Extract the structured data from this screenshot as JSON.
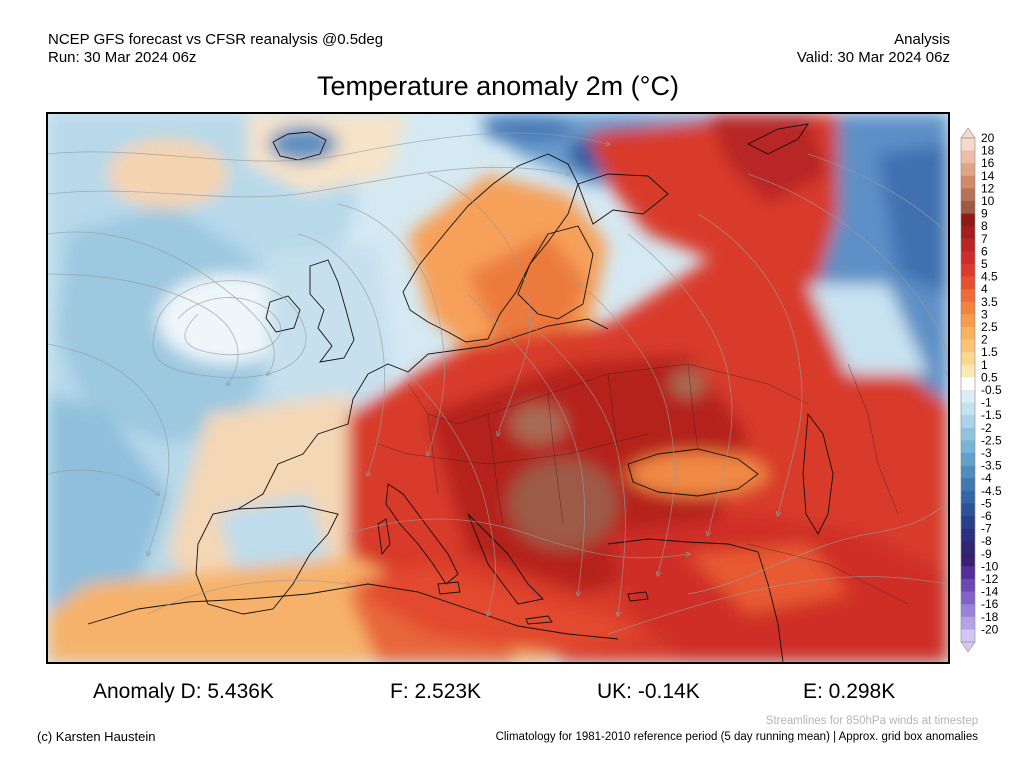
{
  "header": {
    "left_line1": "NCEP GFS forecast vs CFSR reanalysis @0.5deg",
    "left_line2": "Run: 30 Mar 2024 06z",
    "right_line1": "Analysis",
    "right_line2": "Valid: 30 Mar 2024 06z"
  },
  "title": "Temperature anomaly 2m (°C)",
  "colorbar": {
    "levels": [
      "20",
      "18",
      "16",
      "14",
      "12",
      "10",
      "9",
      "8",
      "7",
      "6",
      "5",
      "4.5",
      "4",
      "3.5",
      "3",
      "2.5",
      "2",
      "1.5",
      "1",
      "0.5",
      "-0.5",
      "-1",
      "-1.5",
      "-2",
      "-2.5",
      "-3",
      "-3.5",
      "-4",
      "-4.5",
      "-5",
      "-6",
      "-7",
      "-8",
      "-9",
      "-10",
      "-12",
      "-14",
      "-16",
      "-18",
      "-20"
    ],
    "colors": [
      "#f6d9cb",
      "#ecbea7",
      "#e0a585",
      "#cf8a6a",
      "#b87158",
      "#9c5a47",
      "#8e1a1a",
      "#a31f1f",
      "#b82626",
      "#cc2d2a",
      "#dc3b2c",
      "#e64f2f",
      "#ee6a36",
      "#f3843f",
      "#f69c4d",
      "#f8b25e",
      "#f9c574",
      "#fad98f",
      "#fce9b3",
      "#ffffff",
      "#dcedf6",
      "#c4e1ef",
      "#abd3e7",
      "#92c3de",
      "#79b2d4",
      "#62a0c9",
      "#4f8dbd",
      "#3f79b0",
      "#3465a4",
      "#2d5298",
      "#293f8c",
      "#2a2f7e",
      "#322674",
      "#3b1f70",
      "#552e97",
      "#6b48b3",
      "#8262c7",
      "#9a80d8",
      "#b5a2e6",
      "#d3c6f2"
    ]
  },
  "stats": {
    "d": "Anomaly D: 5.436K",
    "f": "F: 2.523K",
    "uk": "UK: -0.14K",
    "e": "E: 0.298K"
  },
  "footer": {
    "copyright": "(c) Karsten Haustein",
    "streamlines": "Streamlines for 850hPa winds at timestep",
    "climatology": "Climatology for 1981-2010 reference period (5 day running mean) | Approx. grid box anomalies"
  }
}
